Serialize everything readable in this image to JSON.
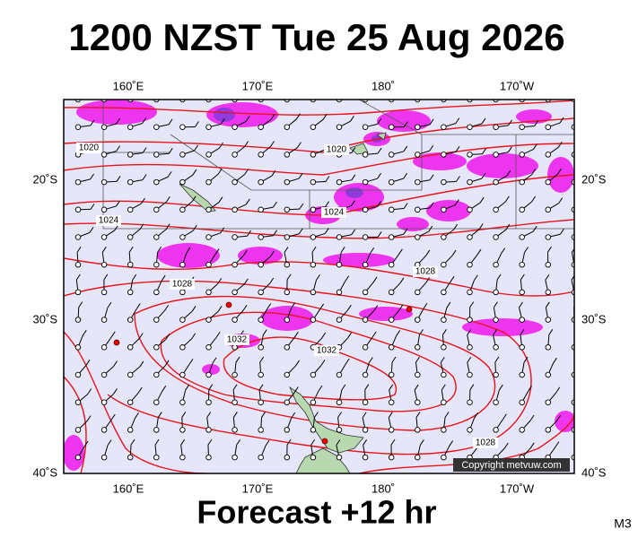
{
  "title": "1200 NZST Tue 25 Aug 2026",
  "lon_labels": [
    "160˚E",
    "170˚E",
    "180˚",
    "170˚W"
  ],
  "lat_labels": [
    "20˚S",
    "30˚S",
    "40˚S"
  ],
  "isobar_labels": [
    "1020",
    "1020",
    "1024",
    "1024",
    "1028",
    "1028",
    "1032",
    "1032",
    "1028"
  ],
  "copyright": "Copyright metvuw.com",
  "footer": "Forecast +12 hr",
  "corner": "M3"
}
